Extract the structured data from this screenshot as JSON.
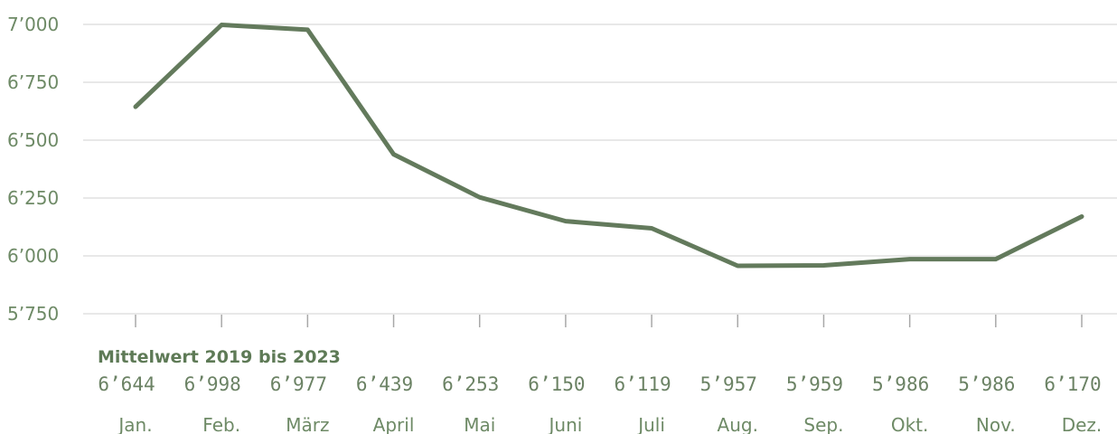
{
  "chart_data": {
    "type": "line",
    "categories": [
      "Jan.",
      "Feb.",
      "März",
      "April",
      "Mai",
      "Juni",
      "Juli",
      "Aug.",
      "Sep.",
      "Okt.",
      "Nov.",
      "Dez."
    ],
    "series": [
      {
        "name": "Mittelwert 2019 bis 2023",
        "values": [
          6644,
          6998,
          6977,
          6439,
          6253,
          6150,
          6119,
          5957,
          5959,
          5986,
          5986,
          6170
        ],
        "value_labels": [
          "6’644",
          "6’998",
          "6’977",
          "6’439",
          "6’253",
          "6’150",
          "6’119",
          "5’957",
          "5’959",
          "5’986",
          "5’986",
          "6’170"
        ]
      }
    ],
    "ylim": [
      5750,
      7000
    ],
    "yticks": [
      7000,
      6750,
      6500,
      6250,
      6000,
      5750
    ],
    "ytick_labels": [
      "7’000",
      "6’750",
      "6’500",
      "6’250",
      "6’000",
      "5’750"
    ],
    "title": "",
    "xlabel": "",
    "ylabel": "",
    "grid": true,
    "line_color": "#637a5c",
    "text_color": "#6e8a66"
  }
}
